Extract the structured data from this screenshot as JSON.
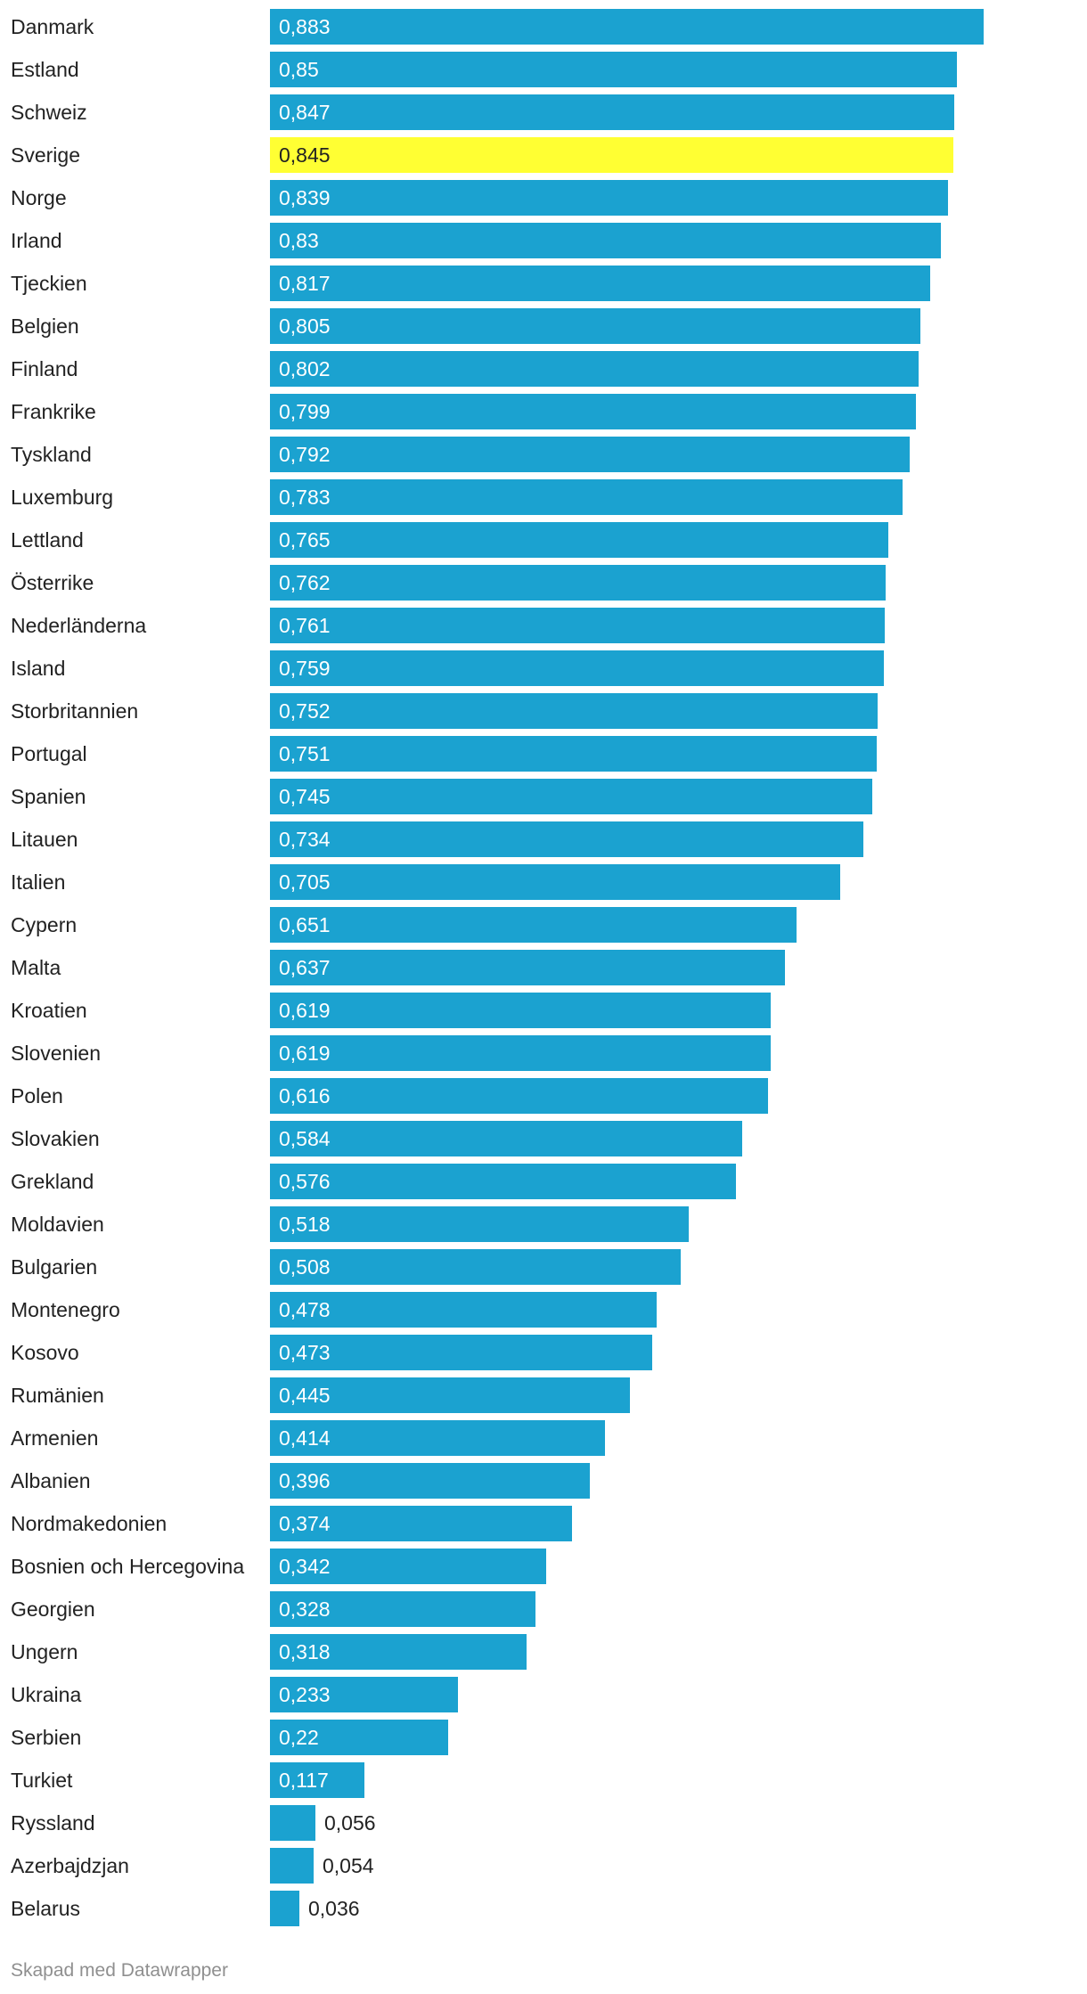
{
  "chart_data": {
    "type": "bar",
    "orientation": "horizontal",
    "categories": [
      "Danmark",
      "Estland",
      "Schweiz",
      "Sverige",
      "Norge",
      "Irland",
      "Tjeckien",
      "Belgien",
      "Finland",
      "Frankrike",
      "Tyskland",
      "Luxemburg",
      "Lettland",
      "Österrike",
      "Nederländerna",
      "Island",
      "Storbritannien",
      "Portugal",
      "Spanien",
      "Litauen",
      "Italien",
      "Cypern",
      "Malta",
      "Kroatien",
      "Slovenien",
      "Polen",
      "Slovakien",
      "Grekland",
      "Moldavien",
      "Bulgarien",
      "Montenegro",
      "Kosovo",
      "Rumänien",
      "Armenien",
      "Albanien",
      "Nordmakedonien",
      "Bosnien och Hercegovina",
      "Georgien",
      "Ungern",
      "Ukraina",
      "Serbien",
      "Turkiet",
      "Ryssland",
      "Azerbajdzjan",
      "Belarus"
    ],
    "values": [
      0.883,
      0.85,
      0.847,
      0.845,
      0.839,
      0.83,
      0.817,
      0.805,
      0.802,
      0.799,
      0.792,
      0.783,
      0.765,
      0.762,
      0.761,
      0.759,
      0.752,
      0.751,
      0.745,
      0.734,
      0.705,
      0.651,
      0.637,
      0.619,
      0.619,
      0.616,
      0.584,
      0.576,
      0.518,
      0.508,
      0.478,
      0.473,
      0.445,
      0.414,
      0.396,
      0.374,
      0.342,
      0.328,
      0.318,
      0.233,
      0.22,
      0.117,
      0.056,
      0.054,
      0.036
    ],
    "labels": [
      "0,883",
      "0,85",
      "0,847",
      "0,845",
      "0,839",
      "0,83",
      "0,817",
      "0,805",
      "0,802",
      "0,799",
      "0,792",
      "0,783",
      "0,765",
      "0,762",
      "0,761",
      "0,759",
      "0,752",
      "0,751",
      "0,745",
      "0,734",
      "0,705",
      "0,651",
      "0,637",
      "0,619",
      "0,619",
      "0,616",
      "0,584",
      "0,576",
      "0,518",
      "0,508",
      "0,478",
      "0,473",
      "0,445",
      "0,414",
      "0,396",
      "0,374",
      "0,342",
      "0,328",
      "0,318",
      "0,233",
      "0,22",
      "0,117",
      "0,056",
      "0,054",
      "0,036"
    ],
    "highlight": "Sverige",
    "xlim": [
      0,
      0.883
    ],
    "colors": {
      "bar": "#1ba2d0",
      "highlight": "#ffff33",
      "label_on_bar": "#ffffff",
      "label_on_highlight": "#222222",
      "label_outside": "#222222"
    }
  },
  "footer": {
    "credit": "Skapad med Datawrapper"
  }
}
